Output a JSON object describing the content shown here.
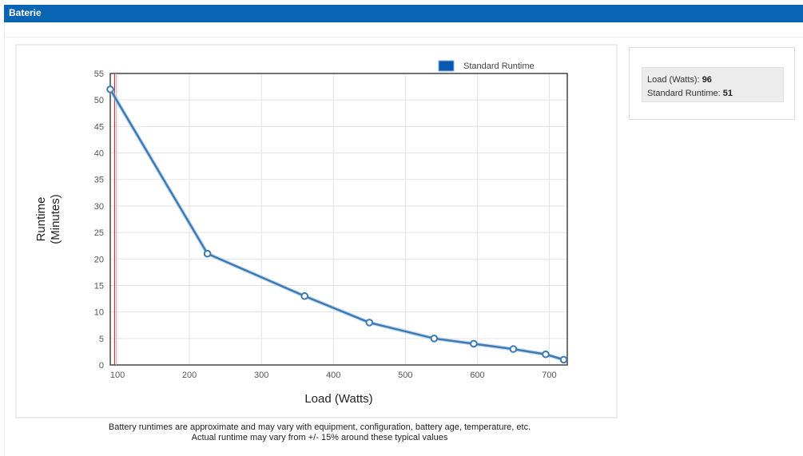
{
  "header": {
    "title": "Baterie"
  },
  "chart_data": {
    "type": "line",
    "title": "",
    "xlabel": "Load (Watts)",
    "ylabel_lines": [
      "Runtime",
      "(Minutes)"
    ],
    "xlim": [
      90,
      725
    ],
    "ylim": [
      0,
      55
    ],
    "x_ticks": [
      100,
      200,
      300,
      400,
      500,
      600,
      700
    ],
    "y_ticks": [
      0,
      5,
      10,
      15,
      20,
      25,
      30,
      35,
      40,
      45,
      50,
      55
    ],
    "grid": true,
    "legend_position": "top-right",
    "series": [
      {
        "name": "Standard Runtime",
        "color": "#3c7ab4",
        "x": [
          90,
          225,
          360,
          450,
          540,
          595,
          650,
          695,
          720
        ],
        "y": [
          52,
          21,
          13,
          8,
          5,
          4,
          3,
          2,
          1
        ]
      }
    ],
    "marker_line": {
      "x": 96,
      "color": "#b22222"
    }
  },
  "tooltip": {
    "load_label": "Load (Watts):",
    "load_value": "96",
    "runtime_label": "Standard Runtime:",
    "runtime_value": "51"
  },
  "footnote": {
    "line1": "Battery runtimes are approximate and may vary with equipment, configuration, battery age, temperature, etc.",
    "line2": "Actual runtime may vary from +/- 15% around these typical values"
  }
}
